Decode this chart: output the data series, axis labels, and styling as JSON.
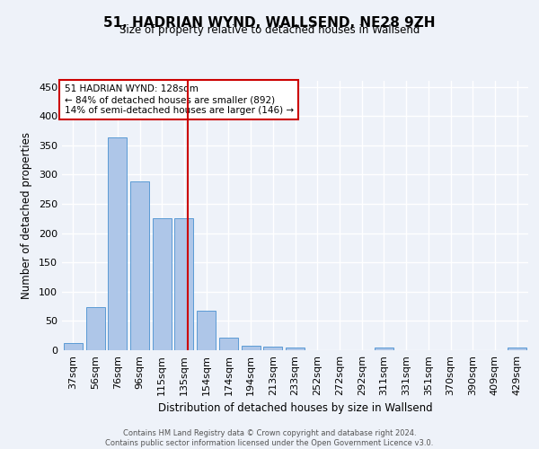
{
  "title": "51, HADRIAN WYND, WALLSEND, NE28 9ZH",
  "subtitle": "Size of property relative to detached houses in Wallsend",
  "xlabel": "Distribution of detached houses by size in Wallsend",
  "ylabel": "Number of detached properties",
  "categories": [
    "37sqm",
    "56sqm",
    "76sqm",
    "96sqm",
    "115sqm",
    "135sqm",
    "154sqm",
    "174sqm",
    "194sqm",
    "213sqm",
    "233sqm",
    "252sqm",
    "272sqm",
    "292sqm",
    "311sqm",
    "331sqm",
    "351sqm",
    "370sqm",
    "390sqm",
    "409sqm",
    "429sqm"
  ],
  "values": [
    13,
    73,
    363,
    288,
    225,
    225,
    68,
    22,
    8,
    6,
    4,
    0,
    0,
    0,
    4,
    0,
    0,
    0,
    0,
    0,
    4
  ],
  "bar_color": "#aec6e8",
  "bar_edge_color": "#5b9bd5",
  "vline_x": 5.15,
  "vline_color": "#cc0000",
  "annotation_text": "51 HADRIAN WYND: 128sqm\n← 84% of detached houses are smaller (892)\n14% of semi-detached houses are larger (146) →",
  "annotation_box_color": "#cc0000",
  "ylim": [
    0,
    460
  ],
  "yticks": [
    0,
    50,
    100,
    150,
    200,
    250,
    300,
    350,
    400,
    450
  ],
  "footer_text": "Contains HM Land Registry data © Crown copyright and database right 2024.\nContains public sector information licensed under the Open Government Licence v3.0.",
  "background_color": "#eef2f9",
  "grid_color": "#ffffff"
}
